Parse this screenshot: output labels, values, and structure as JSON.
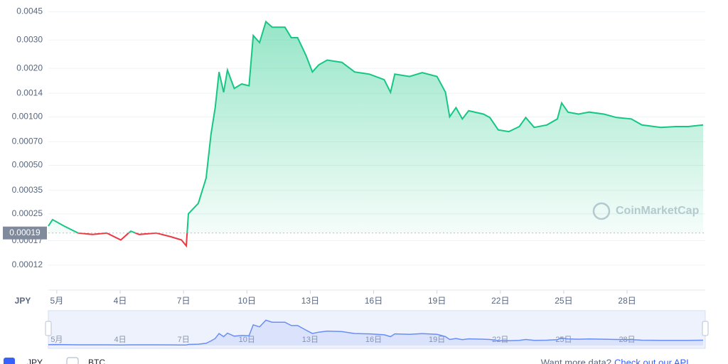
{
  "chart_data": {
    "type": "line",
    "log_scale": true,
    "grid": true,
    "color": "#16c784",
    "down_color": "#ea3943",
    "navigator_color": "#6a8ef6",
    "reference_value": 0.00019,
    "watermark": "CoinMarketCap",
    "x": [
      0.6,
      0.8,
      1.34,
      2.0,
      2.7,
      3.36,
      4.03,
      4.5,
      4.9,
      5.7,
      6.4,
      6.9,
      7.13,
      7.23,
      7.7,
      8.07,
      8.3,
      8.5,
      8.68,
      8.9,
      9.08,
      9.4,
      9.75,
      10.1,
      10.3,
      10.6,
      10.9,
      11.2,
      11.8,
      12.1,
      12.4,
      12.8,
      13.1,
      13.4,
      13.8,
      14.5,
      15.1,
      15.8,
      16.5,
      16.8,
      17.0,
      17.7,
      18.3,
      19.0,
      19.4,
      19.6,
      19.9,
      20.2,
      20.5,
      21.2,
      21.5,
      21.9,
      22.4,
      22.9,
      23.2,
      23.6,
      24.2,
      24.7,
      24.9,
      25.2,
      25.7,
      26.2,
      26.9,
      27.5,
      28.2,
      28.7,
      29.6,
      30.3,
      30.9,
      31.6
    ],
    "values": [
      0.00021,
      0.00023,
      0.00021,
      0.00019,
      0.000186,
      0.00019,
      0.000172,
      0.000195,
      0.000186,
      0.00019,
      0.00018,
      0.000172,
      0.000158,
      0.00025,
      0.00029,
      0.000416,
      0.00078,
      0.00114,
      0.0019,
      0.00142,
      0.00195,
      0.0015,
      0.0016,
      0.00156,
      0.0032,
      0.00289,
      0.0039,
      0.0036,
      0.0036,
      0.0031,
      0.0031,
      0.0024,
      0.0019,
      0.0021,
      0.00225,
      0.00218,
      0.0019,
      0.00184,
      0.0017,
      0.00142,
      0.00184,
      0.00178,
      0.00188,
      0.00178,
      0.00142,
      0.001,
      0.00114,
      0.00097,
      0.00109,
      0.00104,
      0.00099,
      0.00083,
      0.00081,
      0.00087,
      0.00099,
      0.00086,
      0.00089,
      0.00097,
      0.00122,
      0.00107,
      0.00104,
      0.00107,
      0.00104,
      0.00099,
      0.00097,
      0.00089,
      0.00086,
      0.00087,
      0.00087,
      0.00089
    ],
    "xlim": [
      0.6,
      31.7
    ],
    "xticks": [
      {
        "value": 1,
        "label": "5月"
      },
      {
        "value": 4,
        "label": "4日"
      },
      {
        "value": 7,
        "label": "7日"
      },
      {
        "value": 10,
        "label": "10日"
      },
      {
        "value": 13,
        "label": "13日"
      },
      {
        "value": 16,
        "label": "16日"
      },
      {
        "value": 19,
        "label": "19日"
      },
      {
        "value": 22,
        "label": "22日"
      },
      {
        "value": 25,
        "label": "25日"
      },
      {
        "value": 28,
        "label": "28日"
      }
    ],
    "ylim": [
      8.4e-05,
      0.0048
    ],
    "yticks": [
      0.0045,
      {
        "value": 0.003,
        "label": "0.0030"
      },
      {
        "value": 0.002,
        "label": "0.0020"
      },
      0.0014,
      {
        "value": 0.001,
        "label": "0.00100"
      },
      {
        "value": 0.0007,
        "label": "0.00070"
      },
      {
        "value": 0.0005,
        "label": "0.00050"
      },
      0.00035,
      0.00025,
      0.00017,
      0.00012
    ],
    "legend": [
      {
        "label": "JPY",
        "checked": true
      },
      {
        "label": "BTC",
        "checked": false
      }
    ],
    "api_prompt": "Want more data?",
    "api_link": "Check out our API"
  }
}
